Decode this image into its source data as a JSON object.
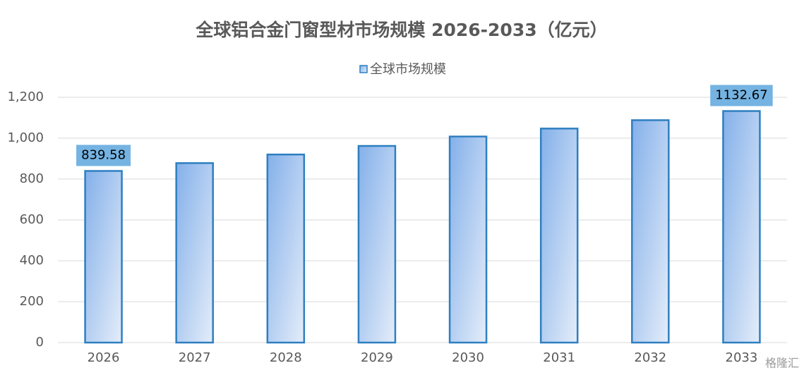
{
  "chart_data": {
    "type": "bar",
    "title": "全球铝合金门窗型材市场规模 2026-2033（亿元）",
    "categories": [
      "2026",
      "2027",
      "2028",
      "2029",
      "2030",
      "2031",
      "2032",
      "2033"
    ],
    "series": [
      {
        "name": "全球市场规模",
        "color": "#2e7fc0",
        "values": [
          839.58,
          878,
          920,
          962,
          1008,
          1047,
          1088,
          1132.67
        ],
        "value_labels": [
          "839.58",
          null,
          null,
          null,
          null,
          null,
          null,
          "1132.67"
        ]
      }
    ],
    "ylim": [
      0,
      1200
    ],
    "yticks": [
      0,
      200,
      400,
      600,
      800,
      {
        "value": 1000,
        "label": "1,000"
      },
      {
        "value": 1200,
        "label": "1,200"
      }
    ],
    "grid": true,
    "legend": "top",
    "watermark": "格隆汇"
  }
}
